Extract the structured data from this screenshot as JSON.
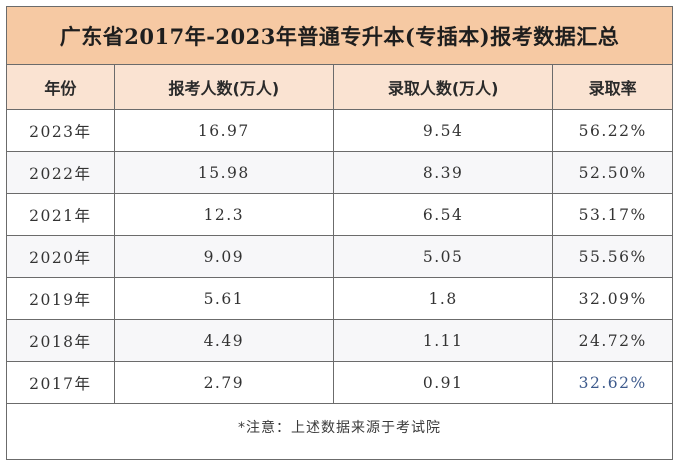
{
  "title": "广东省2017年-2023年普通专升本(专插本)报考数据汇总",
  "columns": [
    "年份",
    "报考人数(万人)",
    "录取人数(万人)",
    "录取率"
  ],
  "rows": [
    {
      "year": "2023年",
      "applicants": "16.97",
      "admitted": "9.54",
      "rate": "56.22%"
    },
    {
      "year": "2022年",
      "applicants": "15.98",
      "admitted": "8.39",
      "rate": "52.50%"
    },
    {
      "year": "2021年",
      "applicants": "12.3",
      "admitted": "6.54",
      "rate": "53.17%"
    },
    {
      "year": "2020年",
      "applicants": "9.09",
      "admitted": "5.05",
      "rate": "55.56%"
    },
    {
      "year": "2019年",
      "applicants": "5.61",
      "admitted": "1.8",
      "rate": "32.09%"
    },
    {
      "year": "2018年",
      "applicants": "4.49",
      "admitted": "1.11",
      "rate": "24.72%"
    },
    {
      "year": "2017年",
      "applicants": "2.79",
      "admitted": "0.91",
      "rate": "32.62%"
    }
  ],
  "note": "*注意：上述数据来源于考试院",
  "colors": {
    "title_bg": "#f6c9a3",
    "header_bg": "#fae3d2",
    "border": "#6b6b6b"
  }
}
